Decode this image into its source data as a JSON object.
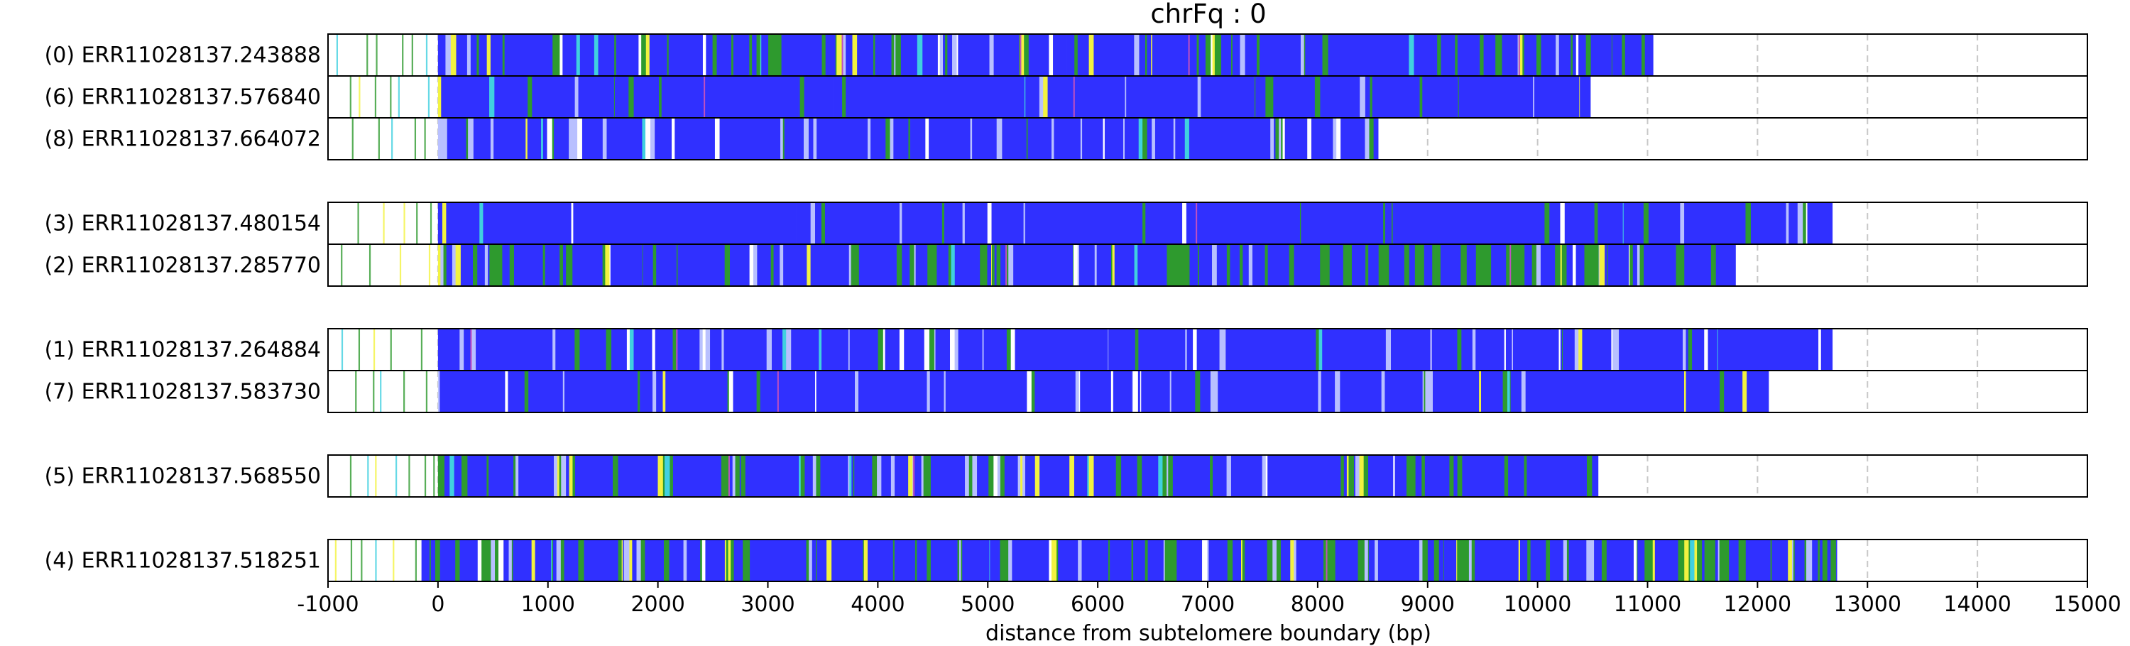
{
  "chart_data": {
    "type": "heatmap",
    "title": "chrFq : 0",
    "xlabel": "distance from subtelomere boundary (bp)",
    "xlim": [
      -1000,
      15000
    ],
    "x_ticks": [
      "-1000",
      "0",
      "1000",
      "2000",
      "3000",
      "4000",
      "5000",
      "6000",
      "7000",
      "8000",
      "9000",
      "10000",
      "11000",
      "12000",
      "13000",
      "14000",
      "15000"
    ],
    "grid": "vertical dashed at 1000 bp steps",
    "colors": {
      "blue": "#3030ff",
      "green": "#2e9a2e",
      "yellow": "#f2f240",
      "light_blue": "#b8c0ff",
      "cyan": "#40d0e0",
      "magenta": "#c050c0",
      "gap": "#ffffff"
    },
    "groups": [
      {
        "reads": [
          {
            "label": "(0) ERR11028137.243888",
            "start": -1000,
            "end": 11050,
            "dense_start": 0,
            "profile": "mixed"
          },
          {
            "label": "(6) ERR11028137.576840",
            "start": -1000,
            "end": 10480,
            "dense_start": 0,
            "profile": "blue"
          },
          {
            "label": "(8) ERR11028137.664072",
            "start": -1000,
            "end": 8550,
            "dense_start": 0,
            "profile": "blue_white"
          }
        ]
      },
      {
        "reads": [
          {
            "label": "(3) ERR11028137.480154",
            "start": -1000,
            "end": 12680,
            "dense_start": 0,
            "profile": "blue"
          },
          {
            "label": "(2) ERR11028137.285770",
            "start": -1000,
            "end": 11800,
            "dense_start": 0,
            "profile": "green_blue"
          }
        ]
      },
      {
        "reads": [
          {
            "label": "(1) ERR11028137.264884",
            "start": -1000,
            "end": 12680,
            "dense_start": 0,
            "profile": "blue_white"
          },
          {
            "label": "(7) ERR11028137.583730",
            "start": -1000,
            "end": 12100,
            "dense_start": 0,
            "profile": "blue_white"
          }
        ]
      },
      {
        "reads": [
          {
            "label": "(5) ERR11028137.568550",
            "start": -1000,
            "end": 10550,
            "dense_start": 0,
            "profile": "mixed"
          }
        ]
      },
      {
        "reads": [
          {
            "label": "(4) ERR11028137.518251",
            "start": -1000,
            "end": 12720,
            "dense_start": -150,
            "profile": "green_heavy"
          }
        ]
      }
    ]
  }
}
